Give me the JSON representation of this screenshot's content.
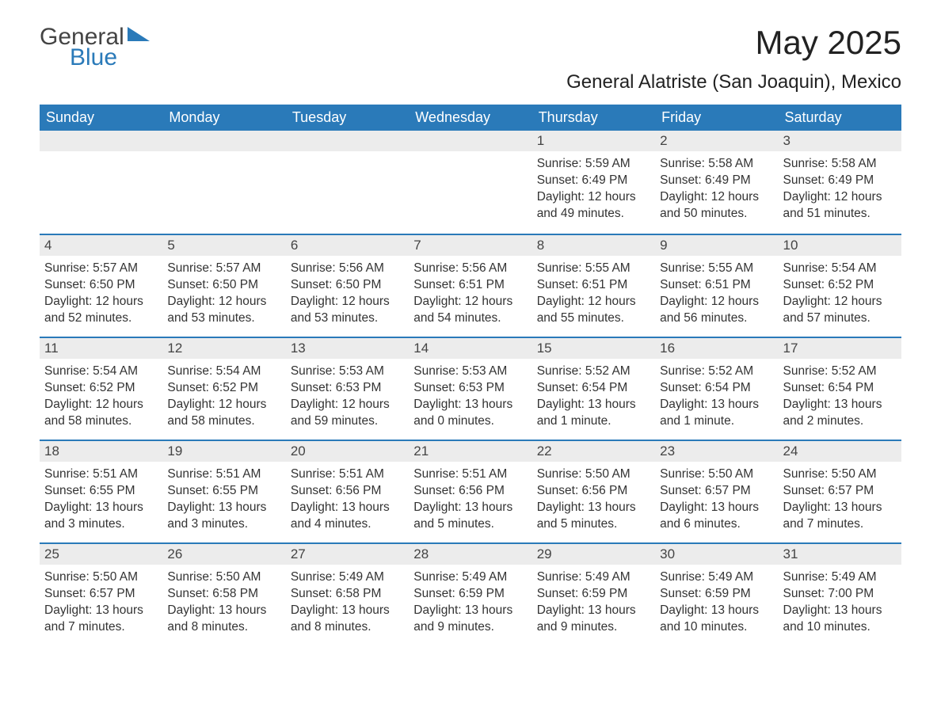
{
  "logo": {
    "text_general": "General",
    "text_blue": "Blue"
  },
  "title": "May 2025",
  "location": "General Alatriste (San Joaquin), Mexico",
  "colors": {
    "header_bg": "#2a7ab9",
    "header_text": "#ffffff",
    "daynum_bg": "#ececec",
    "daynum_border": "#2a7ab9",
    "body_text": "#333333",
    "page_bg": "#ffffff"
  },
  "weekdays": [
    "Sunday",
    "Monday",
    "Tuesday",
    "Wednesday",
    "Thursday",
    "Friday",
    "Saturday"
  ],
  "weeks": [
    [
      {
        "blank": true
      },
      {
        "blank": true
      },
      {
        "blank": true
      },
      {
        "blank": true
      },
      {
        "num": "1",
        "sunrise": "Sunrise: 5:59 AM",
        "sunset": "Sunset: 6:49 PM",
        "daylight": "Daylight: 12 hours and 49 minutes."
      },
      {
        "num": "2",
        "sunrise": "Sunrise: 5:58 AM",
        "sunset": "Sunset: 6:49 PM",
        "daylight": "Daylight: 12 hours and 50 minutes."
      },
      {
        "num": "3",
        "sunrise": "Sunrise: 5:58 AM",
        "sunset": "Sunset: 6:49 PM",
        "daylight": "Daylight: 12 hours and 51 minutes."
      }
    ],
    [
      {
        "num": "4",
        "sunrise": "Sunrise: 5:57 AM",
        "sunset": "Sunset: 6:50 PM",
        "daylight": "Daylight: 12 hours and 52 minutes."
      },
      {
        "num": "5",
        "sunrise": "Sunrise: 5:57 AM",
        "sunset": "Sunset: 6:50 PM",
        "daylight": "Daylight: 12 hours and 53 minutes."
      },
      {
        "num": "6",
        "sunrise": "Sunrise: 5:56 AM",
        "sunset": "Sunset: 6:50 PM",
        "daylight": "Daylight: 12 hours and 53 minutes."
      },
      {
        "num": "7",
        "sunrise": "Sunrise: 5:56 AM",
        "sunset": "Sunset: 6:51 PM",
        "daylight": "Daylight: 12 hours and 54 minutes."
      },
      {
        "num": "8",
        "sunrise": "Sunrise: 5:55 AM",
        "sunset": "Sunset: 6:51 PM",
        "daylight": "Daylight: 12 hours and 55 minutes."
      },
      {
        "num": "9",
        "sunrise": "Sunrise: 5:55 AM",
        "sunset": "Sunset: 6:51 PM",
        "daylight": "Daylight: 12 hours and 56 minutes."
      },
      {
        "num": "10",
        "sunrise": "Sunrise: 5:54 AM",
        "sunset": "Sunset: 6:52 PM",
        "daylight": "Daylight: 12 hours and 57 minutes."
      }
    ],
    [
      {
        "num": "11",
        "sunrise": "Sunrise: 5:54 AM",
        "sunset": "Sunset: 6:52 PM",
        "daylight": "Daylight: 12 hours and 58 minutes."
      },
      {
        "num": "12",
        "sunrise": "Sunrise: 5:54 AM",
        "sunset": "Sunset: 6:52 PM",
        "daylight": "Daylight: 12 hours and 58 minutes."
      },
      {
        "num": "13",
        "sunrise": "Sunrise: 5:53 AM",
        "sunset": "Sunset: 6:53 PM",
        "daylight": "Daylight: 12 hours and 59 minutes."
      },
      {
        "num": "14",
        "sunrise": "Sunrise: 5:53 AM",
        "sunset": "Sunset: 6:53 PM",
        "daylight": "Daylight: 13 hours and 0 minutes."
      },
      {
        "num": "15",
        "sunrise": "Sunrise: 5:52 AM",
        "sunset": "Sunset: 6:54 PM",
        "daylight": "Daylight: 13 hours and 1 minute."
      },
      {
        "num": "16",
        "sunrise": "Sunrise: 5:52 AM",
        "sunset": "Sunset: 6:54 PM",
        "daylight": "Daylight: 13 hours and 1 minute."
      },
      {
        "num": "17",
        "sunrise": "Sunrise: 5:52 AM",
        "sunset": "Sunset: 6:54 PM",
        "daylight": "Daylight: 13 hours and 2 minutes."
      }
    ],
    [
      {
        "num": "18",
        "sunrise": "Sunrise: 5:51 AM",
        "sunset": "Sunset: 6:55 PM",
        "daylight": "Daylight: 13 hours and 3 minutes."
      },
      {
        "num": "19",
        "sunrise": "Sunrise: 5:51 AM",
        "sunset": "Sunset: 6:55 PM",
        "daylight": "Daylight: 13 hours and 3 minutes."
      },
      {
        "num": "20",
        "sunrise": "Sunrise: 5:51 AM",
        "sunset": "Sunset: 6:56 PM",
        "daylight": "Daylight: 13 hours and 4 minutes."
      },
      {
        "num": "21",
        "sunrise": "Sunrise: 5:51 AM",
        "sunset": "Sunset: 6:56 PM",
        "daylight": "Daylight: 13 hours and 5 minutes."
      },
      {
        "num": "22",
        "sunrise": "Sunrise: 5:50 AM",
        "sunset": "Sunset: 6:56 PM",
        "daylight": "Daylight: 13 hours and 5 minutes."
      },
      {
        "num": "23",
        "sunrise": "Sunrise: 5:50 AM",
        "sunset": "Sunset: 6:57 PM",
        "daylight": "Daylight: 13 hours and 6 minutes."
      },
      {
        "num": "24",
        "sunrise": "Sunrise: 5:50 AM",
        "sunset": "Sunset: 6:57 PM",
        "daylight": "Daylight: 13 hours and 7 minutes."
      }
    ],
    [
      {
        "num": "25",
        "sunrise": "Sunrise: 5:50 AM",
        "sunset": "Sunset: 6:57 PM",
        "daylight": "Daylight: 13 hours and 7 minutes."
      },
      {
        "num": "26",
        "sunrise": "Sunrise: 5:50 AM",
        "sunset": "Sunset: 6:58 PM",
        "daylight": "Daylight: 13 hours and 8 minutes."
      },
      {
        "num": "27",
        "sunrise": "Sunrise: 5:49 AM",
        "sunset": "Sunset: 6:58 PM",
        "daylight": "Daylight: 13 hours and 8 minutes."
      },
      {
        "num": "28",
        "sunrise": "Sunrise: 5:49 AM",
        "sunset": "Sunset: 6:59 PM",
        "daylight": "Daylight: 13 hours and 9 minutes."
      },
      {
        "num": "29",
        "sunrise": "Sunrise: 5:49 AM",
        "sunset": "Sunset: 6:59 PM",
        "daylight": "Daylight: 13 hours and 9 minutes."
      },
      {
        "num": "30",
        "sunrise": "Sunrise: 5:49 AM",
        "sunset": "Sunset: 6:59 PM",
        "daylight": "Daylight: 13 hours and 10 minutes."
      },
      {
        "num": "31",
        "sunrise": "Sunrise: 5:49 AM",
        "sunset": "Sunset: 7:00 PM",
        "daylight": "Daylight: 13 hours and 10 minutes."
      }
    ]
  ]
}
